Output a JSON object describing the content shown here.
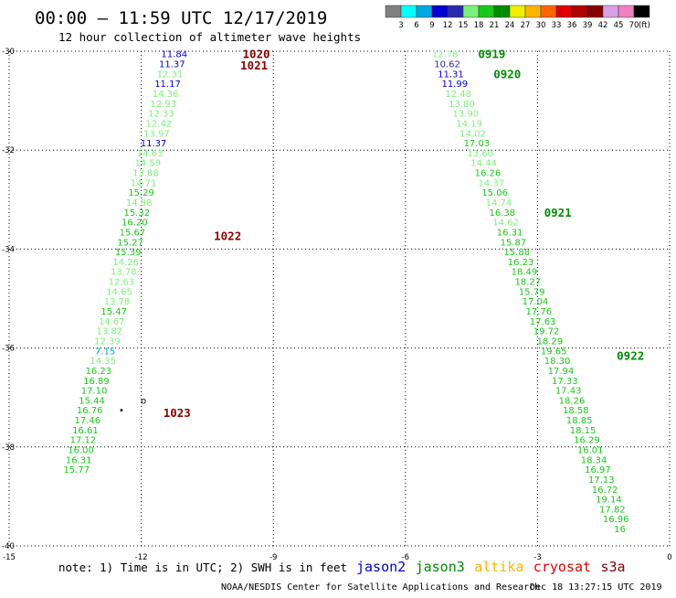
{
  "header": {
    "title": "00:00 – 11:59 UTC 12/17/2019",
    "subtitle": "12 hour collection of altimeter wave heights"
  },
  "colorbar": {
    "labels": [
      "3",
      "6",
      "9",
      "12",
      "15",
      "18",
      "21",
      "24",
      "27",
      "30",
      "33",
      "36",
      "39",
      "42",
      "45",
      "70"
    ],
    "colors": [
      "#808080",
      "#00ffff",
      "#00a8e0",
      "#0000d0",
      "#2828b0",
      "#7cf07c",
      "#18c818",
      "#008c00",
      "#f0f000",
      "#ffb400",
      "#ff6400",
      "#e00000",
      "#b00000",
      "#880000",
      "#d8a0e8",
      "#f080c0",
      "#000000"
    ],
    "unit": "(ft)"
  },
  "axes": {
    "x_ticks": [
      "-15",
      "-12",
      "-9",
      "-6",
      "-3",
      "0"
    ],
    "y_ticks": [
      "-30",
      "-32",
      "-34",
      "-36",
      "-38",
      "-40"
    ]
  },
  "map": {
    "lon_range": [
      -15,
      0
    ],
    "lat_range": [
      -40,
      -30
    ],
    "grid": "dotted",
    "markers": [
      {
        "lon": -11.95,
        "lat": -37.05,
        "symbol": "o"
      },
      {
        "lon": -12.45,
        "lat": -37.25,
        "symbol": "•"
      }
    ]
  },
  "pass_labels": [
    {
      "text": "1020",
      "color": "#880000",
      "lon": -9.7,
      "lat": -30.05
    },
    {
      "text": "1021",
      "color": "#880000",
      "lon": -9.75,
      "lat": -30.28
    },
    {
      "text": "1022",
      "color": "#880000",
      "lon": -10.35,
      "lat": -33.72
    },
    {
      "text": "1023",
      "color": "#880000",
      "lon": -11.5,
      "lat": -37.3
    },
    {
      "text": "0919",
      "color": "#008c00",
      "lon": -4.35,
      "lat": -30.05
    },
    {
      "text": "0920",
      "color": "#008c00",
      "lon": -4.0,
      "lat": -30.45
    },
    {
      "text": "0921",
      "color": "#008c00",
      "lon": -2.85,
      "lat": -33.25
    },
    {
      "text": "0922",
      "color": "#008c00",
      "lon": -1.2,
      "lat": -36.15
    }
  ],
  "wave_groups": [
    {
      "id": "track-1",
      "entries": [
        {
          "v": "11.84",
          "c": "#0000d0",
          "lon": -11.25,
          "lat": -30.05
        },
        {
          "v": "11.37",
          "c": "#0000d0",
          "lon": -11.3,
          "lat": -30.25
        },
        {
          "v": "12.31",
          "c": "#7cf07c",
          "lon": -11.35,
          "lat": -30.45
        },
        {
          "v": "11.17",
          "c": "#0000d0",
          "lon": -11.4,
          "lat": -30.65
        },
        {
          "v": "14.36",
          "c": "#7cf07c",
          "lon": -11.45,
          "lat": -30.85
        },
        {
          "v": "12.93",
          "c": "#7cf07c",
          "lon": -11.5,
          "lat": -31.05
        },
        {
          "v": "12.33",
          "c": "#7cf07c",
          "lon": -11.55,
          "lat": -31.25
        },
        {
          "v": "12.42",
          "c": "#7cf07c",
          "lon": -11.6,
          "lat": -31.45
        },
        {
          "v": "13.97",
          "c": "#7cf07c",
          "lon": -11.65,
          "lat": -31.65
        },
        {
          "v": "11.37",
          "c": "#0000d0",
          "lon": -11.72,
          "lat": -31.85
        },
        {
          "v": "14.63",
          "c": "#7cf07c",
          "lon": -11.8,
          "lat": -32.05
        },
        {
          "v": "14.59",
          "c": "#7cf07c",
          "lon": -11.85,
          "lat": -32.25
        },
        {
          "v": "13.88",
          "c": "#7cf07c",
          "lon": -11.9,
          "lat": -32.45
        },
        {
          "v": "14.71",
          "c": "#7cf07c",
          "lon": -11.95,
          "lat": -32.65
        },
        {
          "v": "15.29",
          "c": "#18c818",
          "lon": -12.0,
          "lat": -32.85
        },
        {
          "v": "14.98",
          "c": "#7cf07c",
          "lon": -12.05,
          "lat": -33.05
        },
        {
          "v": "15.32",
          "c": "#18c818",
          "lon": -12.1,
          "lat": -33.25
        },
        {
          "v": "16.20",
          "c": "#18c818",
          "lon": -12.15,
          "lat": -33.45
        },
        {
          "v": "15.67",
          "c": "#18c818",
          "lon": -12.2,
          "lat": -33.65
        },
        {
          "v": "15.27",
          "c": "#18c818",
          "lon": -12.25,
          "lat": -33.85
        },
        {
          "v": "15.39",
          "c": "#18c818",
          "lon": -12.3,
          "lat": -34.05
        },
        {
          "v": "14.26",
          "c": "#7cf07c",
          "lon": -12.35,
          "lat": -34.25
        },
        {
          "v": "13.78",
          "c": "#7cf07c",
          "lon": -12.4,
          "lat": -34.45
        },
        {
          "v": "12.63",
          "c": "#7cf07c",
          "lon": -12.45,
          "lat": -34.65
        },
        {
          "v": "14.65",
          "c": "#7cf07c",
          "lon": -12.5,
          "lat": -34.85
        },
        {
          "v": "13.78",
          "c": "#7cf07c",
          "lon": -12.55,
          "lat": -35.05
        },
        {
          "v": "15.47",
          "c": "#18c818",
          "lon": -12.62,
          "lat": -35.25
        },
        {
          "v": "14.67",
          "c": "#7cf07c",
          "lon": -12.67,
          "lat": -35.45
        },
        {
          "v": "13.82",
          "c": "#7cf07c",
          "lon": -12.72,
          "lat": -35.65
        },
        {
          "v": "12.39",
          "c": "#7cf07c",
          "lon": -12.77,
          "lat": -35.85
        },
        {
          "v": "7.15",
          "c": "#00a8e0",
          "lon": -12.82,
          "lat": -36.05
        },
        {
          "v": "14.35",
          "c": "#7cf07c",
          "lon": -12.87,
          "lat": -36.25
        },
        {
          "v": "16.23",
          "c": "#18c818",
          "lon": -12.97,
          "lat": -36.45
        },
        {
          "v": "16.89",
          "c": "#18c818",
          "lon": -13.02,
          "lat": -36.65
        },
        {
          "v": "17.10",
          "c": "#18c818",
          "lon": -13.07,
          "lat": -36.85
        },
        {
          "v": "15.44",
          "c": "#18c818",
          "lon": -13.12,
          "lat": -37.05
        },
        {
          "v": "16.76",
          "c": "#18c818",
          "lon": -13.17,
          "lat": -37.25
        },
        {
          "v": "17.46",
          "c": "#18c818",
          "lon": -13.22,
          "lat": -37.45
        },
        {
          "v": "16.61",
          "c": "#18c818",
          "lon": -13.27,
          "lat": -37.65
        },
        {
          "v": "17.12",
          "c": "#18c818",
          "lon": -13.32,
          "lat": -37.85
        },
        {
          "v": "16.00",
          "c": "#18c818",
          "lon": -13.37,
          "lat": -38.05
        },
        {
          "v": "16.31",
          "c": "#18c818",
          "lon": -13.42,
          "lat": -38.25
        },
        {
          "v": "15.77",
          "c": "#18c818",
          "lon": -13.47,
          "lat": -38.45
        }
      ]
    },
    {
      "id": "track-2",
      "entries": [
        {
          "v": "12.78",
          "c": "#7cf07c",
          "lon": -5.1,
          "lat": -30.05
        },
        {
          "v": "10.62",
          "c": "#2828b0",
          "lon": -5.05,
          "lat": -30.25
        },
        {
          "v": "11.31",
          "c": "#0000d0",
          "lon": -4.97,
          "lat": -30.45
        },
        {
          "v": "11.99",
          "c": "#0000d0",
          "lon": -4.88,
          "lat": -30.65
        },
        {
          "v": "12.48",
          "c": "#7cf07c",
          "lon": -4.8,
          "lat": -30.85
        },
        {
          "v": "13.80",
          "c": "#7cf07c",
          "lon": -4.72,
          "lat": -31.05
        },
        {
          "v": "13.90",
          "c": "#7cf07c",
          "lon": -4.63,
          "lat": -31.25
        },
        {
          "v": "14.19",
          "c": "#7cf07c",
          "lon": -4.55,
          "lat": -31.45
        },
        {
          "v": "14.02",
          "c": "#7cf07c",
          "lon": -4.47,
          "lat": -31.65
        },
        {
          "v": "17.03",
          "c": "#18c818",
          "lon": -4.38,
          "lat": -31.85
        },
        {
          "v": "13.60",
          "c": "#7cf07c",
          "lon": -4.3,
          "lat": -32.05
        },
        {
          "v": "14.44",
          "c": "#7cf07c",
          "lon": -4.22,
          "lat": -32.25
        },
        {
          "v": "16.26",
          "c": "#18c818",
          "lon": -4.13,
          "lat": -32.45
        },
        {
          "v": "14.37",
          "c": "#7cf07c",
          "lon": -4.05,
          "lat": -32.65
        },
        {
          "v": "15.06",
          "c": "#18c818",
          "lon": -3.97,
          "lat": -32.85
        },
        {
          "v": "14.74",
          "c": "#7cf07c",
          "lon": -3.88,
          "lat": -33.05
        },
        {
          "v": "16.38",
          "c": "#18c818",
          "lon": -3.8,
          "lat": -33.25
        },
        {
          "v": "14.62",
          "c": "#7cf07c",
          "lon": -3.72,
          "lat": -33.45
        },
        {
          "v": "16.31",
          "c": "#18c818",
          "lon": -3.63,
          "lat": -33.65
        },
        {
          "v": "15.87",
          "c": "#18c818",
          "lon": -3.55,
          "lat": -33.85
        },
        {
          "v": "15.88",
          "c": "#18c818",
          "lon": -3.47,
          "lat": -34.05
        },
        {
          "v": "16.23",
          "c": "#18c818",
          "lon": -3.38,
          "lat": -34.25
        },
        {
          "v": "18.49",
          "c": "#18c818",
          "lon": -3.3,
          "lat": -34.45
        },
        {
          "v": "18.27",
          "c": "#18c818",
          "lon": -3.22,
          "lat": -34.65
        },
        {
          "v": "15.79",
          "c": "#18c818",
          "lon": -3.13,
          "lat": -34.85
        },
        {
          "v": "17.04",
          "c": "#18c818",
          "lon": -3.05,
          "lat": -35.05
        },
        {
          "v": "17.76",
          "c": "#18c818",
          "lon": -2.97,
          "lat": -35.25
        },
        {
          "v": "17.63",
          "c": "#18c818",
          "lon": -2.88,
          "lat": -35.45
        },
        {
          "v": "19.72",
          "c": "#18c818",
          "lon": -2.8,
          "lat": -35.65
        },
        {
          "v": "18.29",
          "c": "#18c818",
          "lon": -2.72,
          "lat": -35.85
        },
        {
          "v": "19.65",
          "c": "#18c818",
          "lon": -2.63,
          "lat": -36.05
        },
        {
          "v": "18.30",
          "c": "#18c818",
          "lon": -2.55,
          "lat": -36.25
        },
        {
          "v": "17.94",
          "c": "#18c818",
          "lon": -2.47,
          "lat": -36.45
        },
        {
          "v": "17.33",
          "c": "#18c818",
          "lon": -2.38,
          "lat": -36.65
        },
        {
          "v": "17.43",
          "c": "#18c818",
          "lon": -2.3,
          "lat": -36.85
        },
        {
          "v": "18.26",
          "c": "#18c818",
          "lon": -2.22,
          "lat": -37.05
        },
        {
          "v": "18.58",
          "c": "#18c818",
          "lon": -2.13,
          "lat": -37.25
        },
        {
          "v": "18.85",
          "c": "#18c818",
          "lon": -2.05,
          "lat": -37.45
        },
        {
          "v": "18.15",
          "c": "#18c818",
          "lon": -1.97,
          "lat": -37.65
        },
        {
          "v": "16.29",
          "c": "#18c818",
          "lon": -1.88,
          "lat": -37.85
        },
        {
          "v": "16.01",
          "c": "#18c818",
          "lon": -1.8,
          "lat": -38.05
        },
        {
          "v": "18.34",
          "c": "#18c818",
          "lon": -1.72,
          "lat": -38.25
        },
        {
          "v": "16.97",
          "c": "#18c818",
          "lon": -1.63,
          "lat": -38.45
        },
        {
          "v": "17.13",
          "c": "#18c818",
          "lon": -1.55,
          "lat": -38.65
        },
        {
          "v": "16.72",
          "c": "#18c818",
          "lon": -1.47,
          "lat": -38.85
        },
        {
          "v": "19.14",
          "c": "#18c818",
          "lon": -1.38,
          "lat": -39.05
        },
        {
          "v": "17.82",
          "c": "#18c818",
          "lon": -1.3,
          "lat": -39.25
        },
        {
          "v": "16.96",
          "c": "#18c818",
          "lon": -1.22,
          "lat": -39.45
        },
        {
          "v": "16",
          "c": "#18c818",
          "lon": -1.13,
          "lat": -39.65
        }
      ]
    }
  ],
  "footer": {
    "note": "note: 1) Time is in UTC; 2) SWH is in feet",
    "satellites": [
      {
        "name": "jason2",
        "color": "#0000d0"
      },
      {
        "name": "jason3",
        "color": "#008c00"
      },
      {
        "name": "altika",
        "color": "#ffb400"
      },
      {
        "name": "cryosat",
        "color": "#e00000"
      },
      {
        "name": "s3a",
        "color": "#880000"
      }
    ],
    "credit": "NOAA/NESDIS Center for Satellite Applications and Research",
    "timestamp": "Dec 18 13:27:15 UTC 2019"
  }
}
